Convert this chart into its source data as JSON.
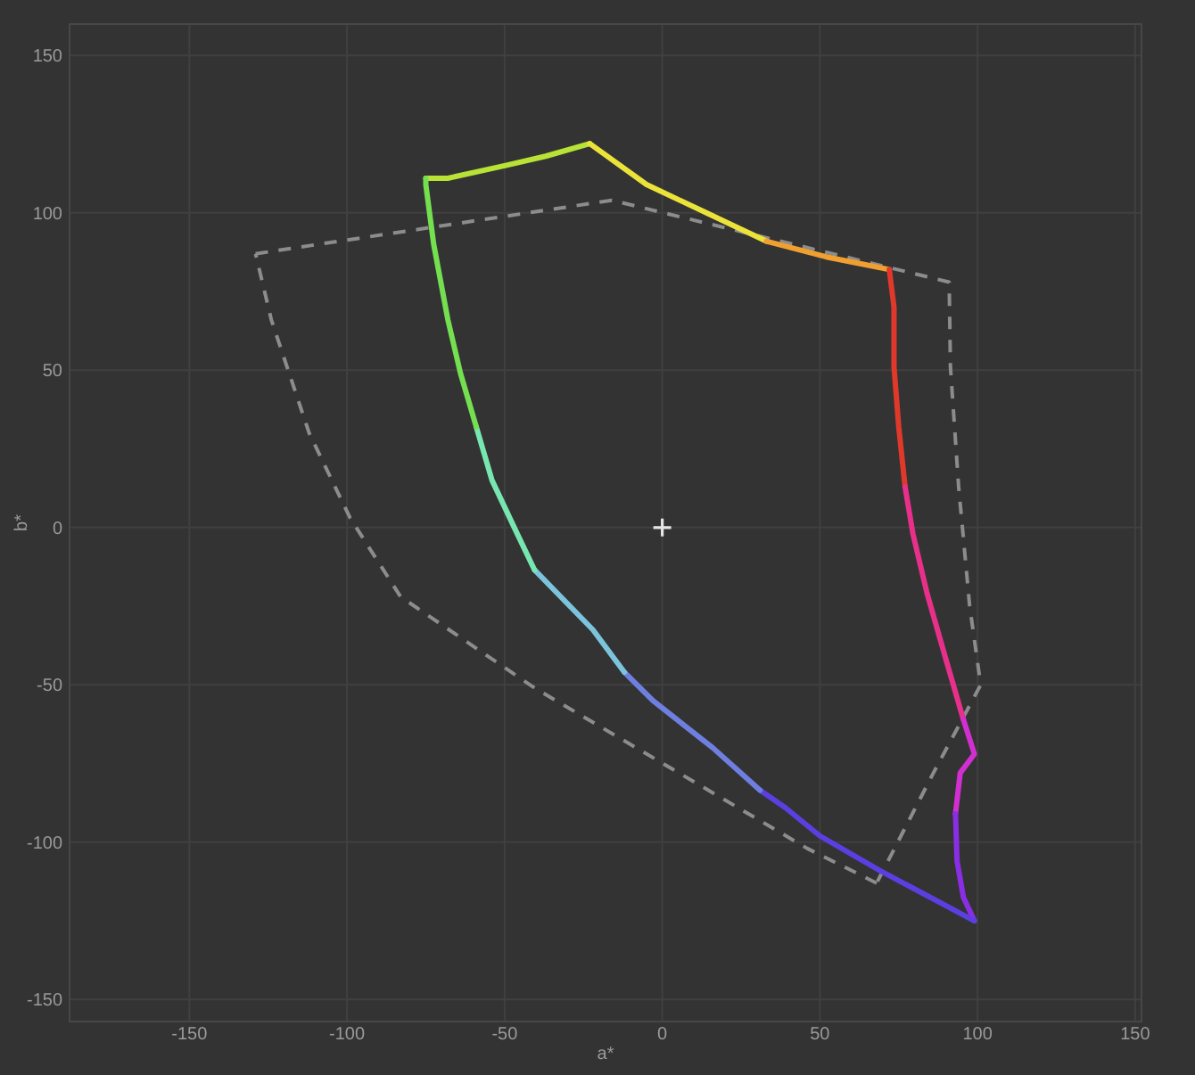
{
  "chart_data": {
    "type": "line",
    "xlabel": "a*",
    "ylabel": "b*",
    "xlim": [
      -188,
      152
    ],
    "ylim": [
      -157,
      160
    ],
    "xticks": [
      -150,
      -100,
      -50,
      0,
      50,
      100,
      150
    ],
    "yticks": [
      -150,
      -100,
      -50,
      0,
      50,
      100,
      150
    ],
    "grid": true,
    "line_style": "solid",
    "series": [
      {
        "color": "#8c8c8c",
        "line_style": "dashed",
        "x": [
          -129,
          -16,
          91,
          91.4,
          94,
          97.5,
          101,
          86,
          68
        ],
        "values": [
          87,
          104,
          78,
          51,
          13,
          -25,
          -50,
          -78,
          -113
        ]
      },
      {
        "color": "#8c8c8c",
        "line_style": "dashed",
        "x": [
          68,
          46,
          -40.5,
          -83,
          -99,
          -112,
          -124,
          -129
        ],
        "values": [
          -113,
          -102,
          -51,
          -22,
          3,
          30,
          66,
          87
        ]
      },
      {
        "color": "#b8e236",
        "x": [
          -75,
          -68,
          -50,
          -37,
          -23
        ],
        "values": [
          111,
          111,
          115,
          118,
          122
        ]
      },
      {
        "color": "#ece33a",
        "x": [
          -23,
          -5,
          14,
          33
        ],
        "values": [
          122,
          109,
          100,
          91
        ]
      },
      {
        "color": "#f0a030",
        "x": [
          33,
          52,
          62,
          72
        ],
        "values": [
          91,
          86,
          84,
          82
        ]
      },
      {
        "color": "#e0392b",
        "x": [
          72,
          73.5,
          73.5,
          75,
          77
        ],
        "values": [
          82,
          70,
          51,
          32,
          13
        ]
      },
      {
        "color": "#e8308a",
        "x": [
          77,
          79.5,
          84,
          90,
          95.5
        ],
        "values": [
          13,
          -2,
          -21,
          -42,
          -61
        ]
      },
      {
        "color": "#d22fd0",
        "x": [
          95.5,
          99,
          94.5,
          93
        ],
        "values": [
          -61,
          -72,
          -78,
          -91
        ]
      },
      {
        "color": "#8a2ee6",
        "x": [
          93,
          93.5,
          95.5,
          99
        ],
        "values": [
          -91,
          -106,
          -117.5,
          -125
        ]
      },
      {
        "color": "#5b3fe0",
        "x": [
          99,
          69,
          50,
          39,
          31
        ],
        "values": [
          -125,
          -109,
          -98,
          -89,
          -83.5
        ]
      },
      {
        "color": "#6f7fe0",
        "x": [
          31,
          16,
          -3,
          -12
        ],
        "values": [
          -83.5,
          -70,
          -55,
          -46
        ]
      },
      {
        "color": "#7cc3dc",
        "x": [
          -12,
          -22,
          -40.5
        ],
        "values": [
          -46,
          -32.5,
          -13.5
        ]
      },
      {
        "color": "#78e6b0",
        "x": [
          -40.5,
          -46,
          -54,
          -59
        ],
        "values": [
          -13.5,
          -2,
          15,
          32
        ]
      },
      {
        "color": "#74e050",
        "x": [
          -59,
          -64,
          -68,
          -72.5,
          -75,
          -75
        ],
        "values": [
          32,
          49,
          66,
          90,
          109,
          111
        ]
      },
      {
        "type": "scatter",
        "marker": "cross",
        "color": "#e6e6e6",
        "x": [
          0
        ],
        "values": [
          0
        ]
      }
    ]
  }
}
